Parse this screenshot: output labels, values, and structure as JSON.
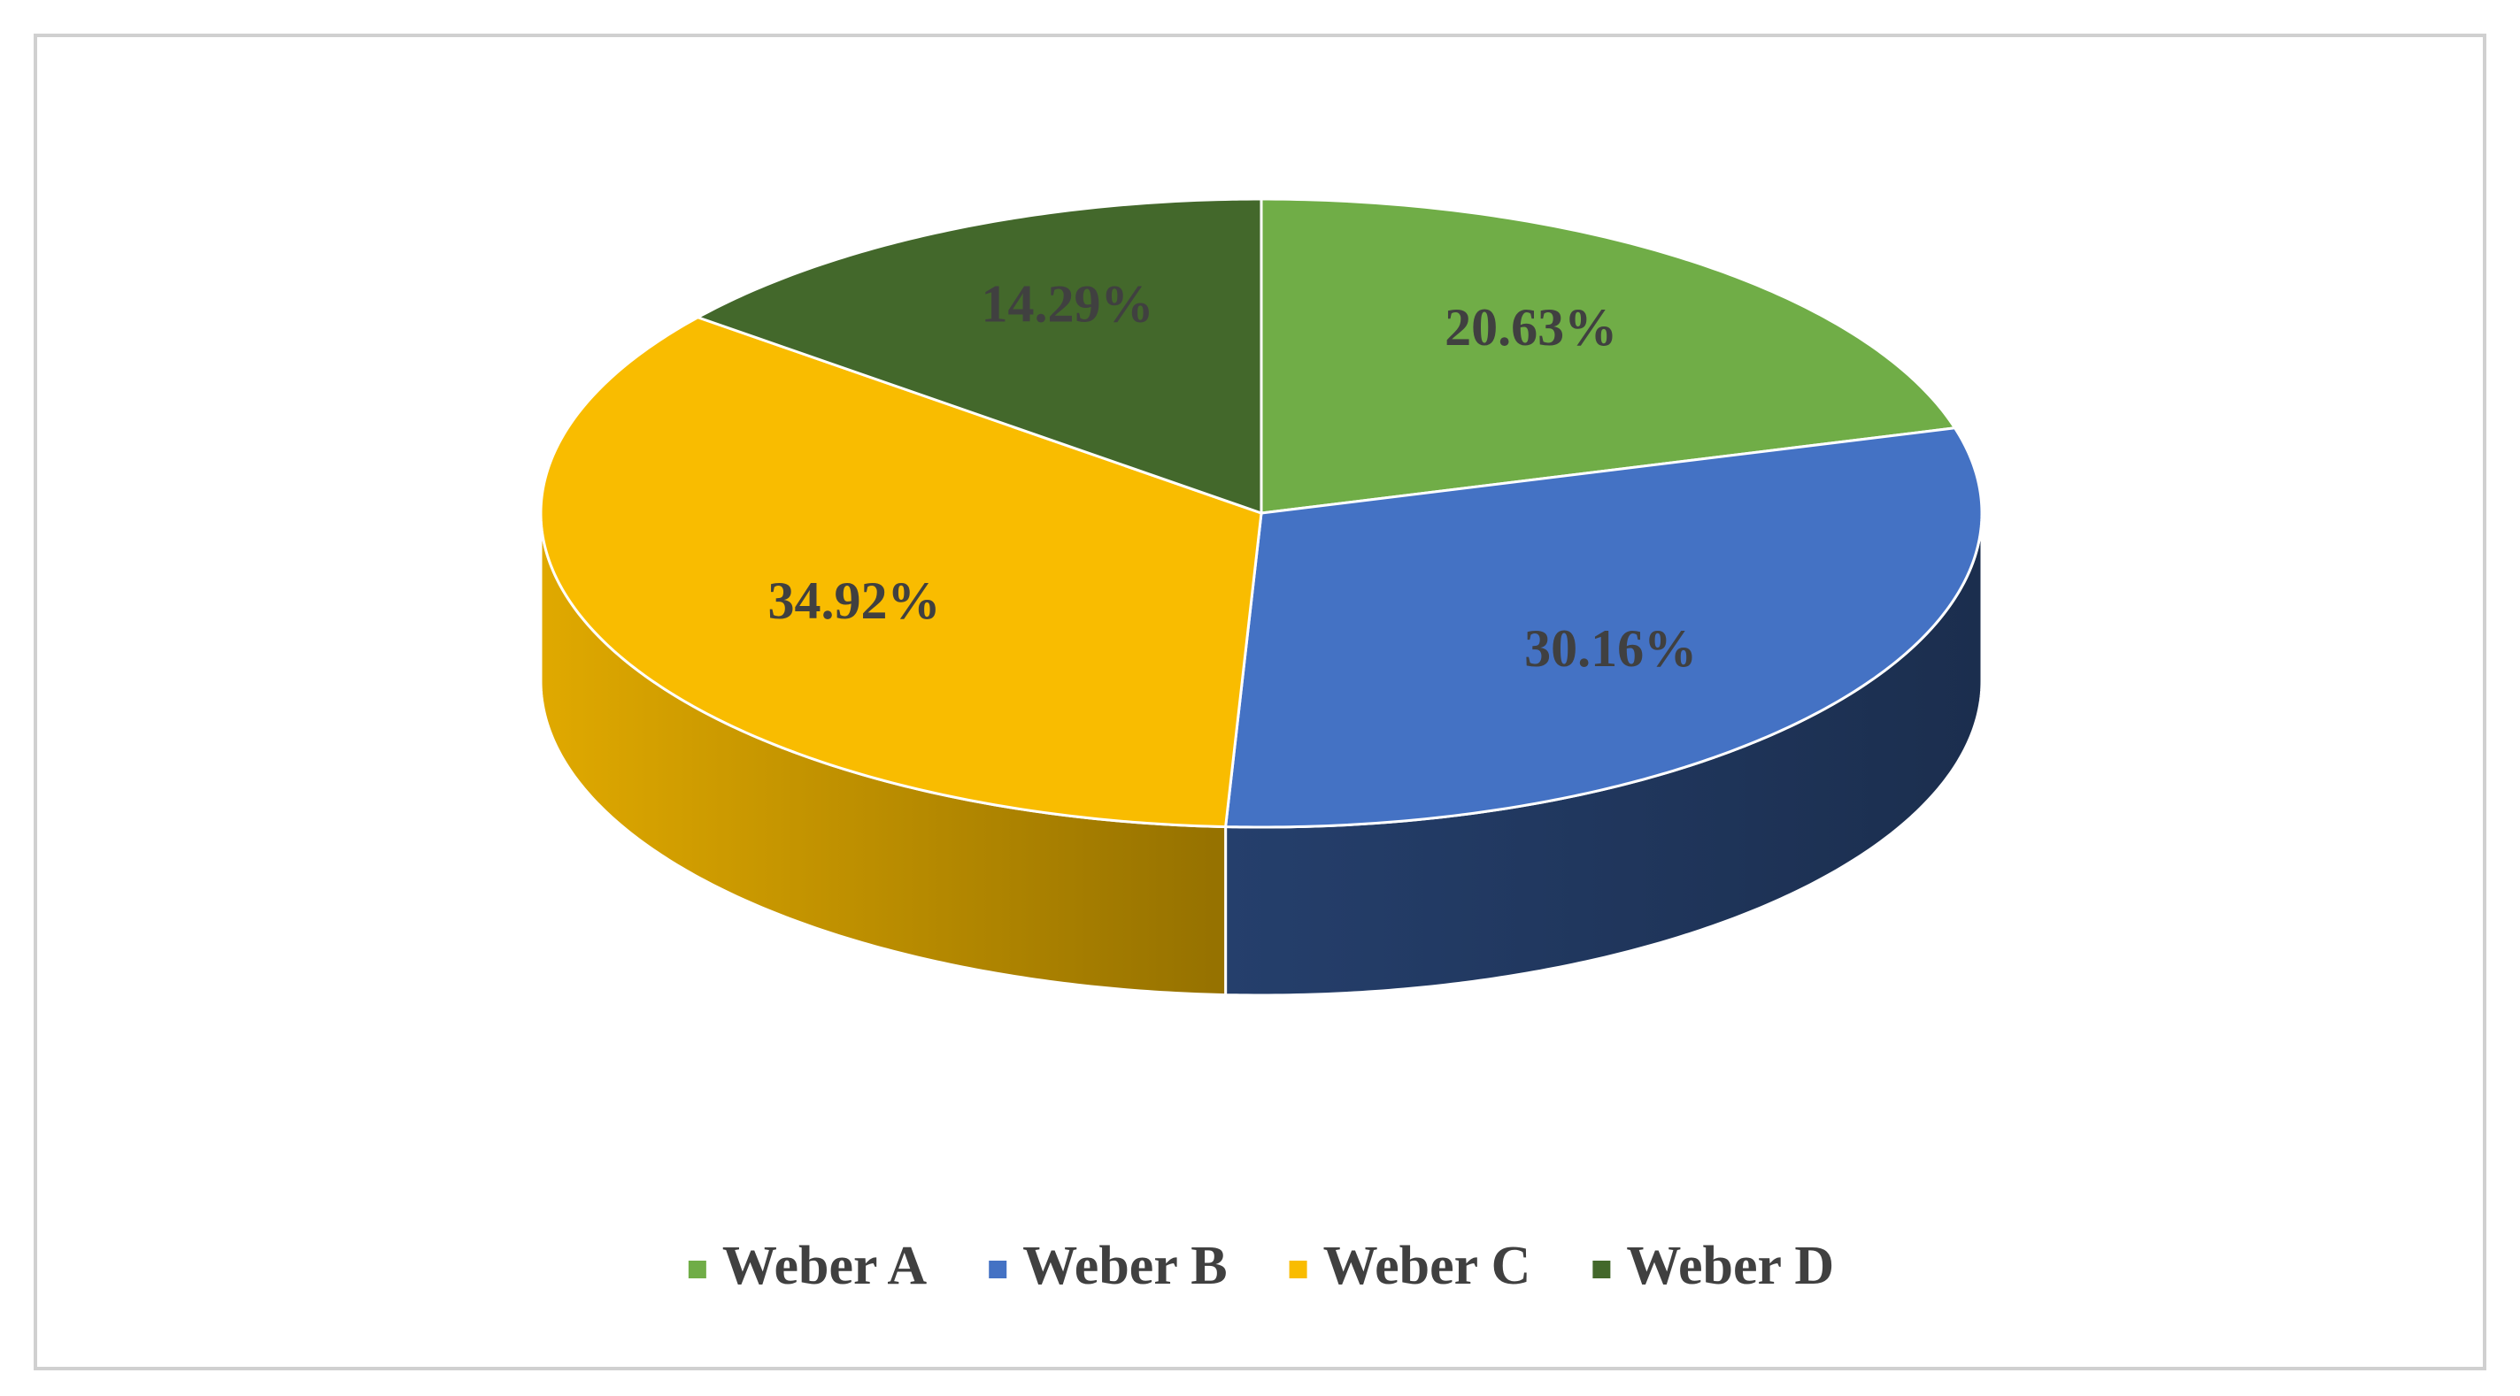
{
  "chart_data": {
    "type": "pie3d",
    "categories": [
      "Weber A",
      "Weber B",
      "Weber C",
      "Weber D"
    ],
    "values": [
      20.63,
      30.16,
      34.92,
      14.29
    ],
    "value_labels": [
      "20.63%",
      "30.16%",
      "34.92%",
      "14.29%"
    ],
    "colors": [
      "#70ad47",
      "#4472c4",
      "#f9bc00",
      "#43682b"
    ],
    "legend": "bottom"
  }
}
